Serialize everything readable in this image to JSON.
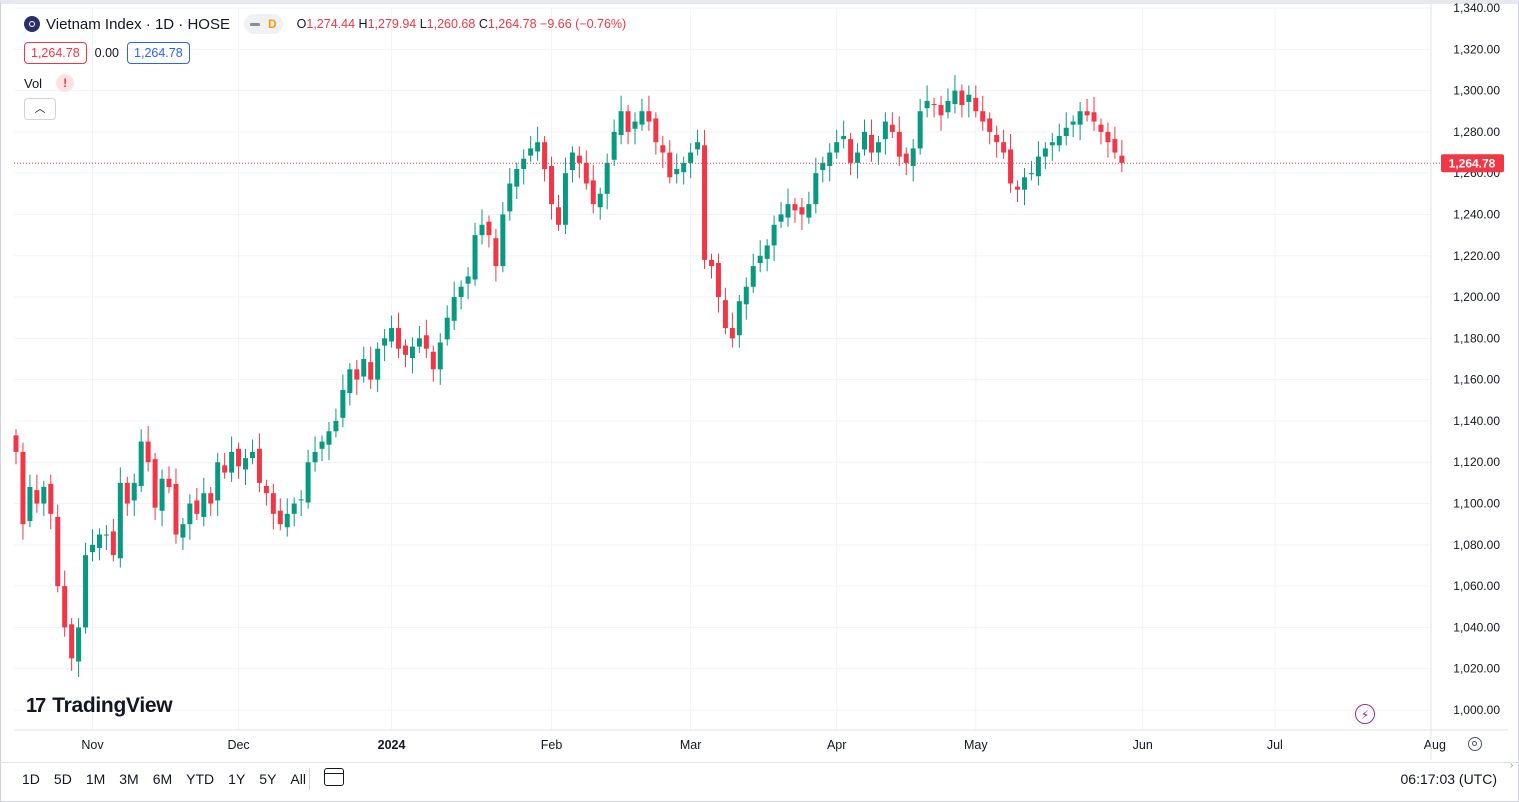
{
  "header": {
    "title": "Vietnam Index · 1D · HOSE",
    "interval_badge": "D",
    "ohlc": {
      "o_label": "O",
      "o": "1,274.44",
      "h_label": "H",
      "h": "1,279.94",
      "l_label": "L",
      "l": "1,260.68",
      "c_label": "C",
      "c": "1,264.78",
      "change": "−9.66 (−0.76%)"
    }
  },
  "price_boxes": {
    "left": "1,264.78",
    "middle": "0.00",
    "right": "1,264.78"
  },
  "volume": {
    "label": "Vol",
    "warning": "!"
  },
  "collapse_icon": "chevron-up-icon",
  "brand": "TradingView",
  "ranges": [
    "1D",
    "5D",
    "1M",
    "3M",
    "6M",
    "YTD",
    "1Y",
    "5Y",
    "All"
  ],
  "clock": "06:17:03 (UTC)",
  "colors": {
    "up": "#089981",
    "down": "#f23645",
    "grid": "#f0f3fa",
    "axis_text": "#131722",
    "last_price_bg": "#f23645"
  },
  "chart_data": {
    "type": "candlestick",
    "symbol": "Vietnam Index",
    "interval": "1D",
    "exchange": "HOSE",
    "ylim": [
      1000,
      1340
    ],
    "y_ticks": [
      1000,
      1020,
      1040,
      1060,
      1080,
      1100,
      1120,
      1140,
      1160,
      1180,
      1200,
      1220,
      1240,
      1260,
      1280,
      1300,
      1320,
      1340
    ],
    "y_tick_labels": [
      "1,000.00",
      "1,020.00",
      "1,040.00",
      "1,060.00",
      "1,080.00",
      "1,100.00",
      "1,120.00",
      "1,140.00",
      "1,160.00",
      "1,180.00",
      "1,200.00",
      "1,220.00",
      "1,240.00",
      "1,260.00",
      "1,280.00",
      "1,300.00",
      "1,320.00",
      "1,340.00"
    ],
    "x_ticks": [
      {
        "label": "Nov",
        "index": 11
      },
      {
        "label": "Dec",
        "index": 32
      },
      {
        "label": "2024",
        "index": 54
      },
      {
        "label": "Feb",
        "index": 77
      },
      {
        "label": "Mar",
        "index": 97
      },
      {
        "label": "Apr",
        "index": 118
      },
      {
        "label": "May",
        "index": 138
      },
      {
        "label": "Jun",
        "index": 162
      },
      {
        "label": "Jul",
        "index": 181
      },
      {
        "label": "Aug",
        "index": 204
      }
    ],
    "last_price": 1264.78,
    "last_price_label": "1,264.78",
    "closes": [
      1125,
      1090,
      1108,
      1100,
      1108,
      1095,
      1060,
      1040,
      1025,
      1040,
      1075,
      1080,
      1085,
      1085,
      1075,
      1110,
      1100,
      1110,
      1130,
      1120,
      1098,
      1112,
      1108,
      1085,
      1090,
      1100,
      1095,
      1105,
      1100,
      1120,
      1115,
      1125,
      1118,
      1122,
      1125,
      1110,
      1105,
      1095,
      1090,
      1095,
      1100,
      1102,
      1120,
      1125,
      1130,
      1135,
      1140,
      1155,
      1165,
      1160,
      1170,
      1160,
      1175,
      1180,
      1185,
      1175,
      1172,
      1176,
      1180,
      1175,
      1165,
      1178,
      1190,
      1200,
      1205,
      1210,
      1230,
      1235,
      1230,
      1215,
      1240,
      1255,
      1262,
      1267,
      1272,
      1275,
      1262,
      1245,
      1235,
      1260,
      1270,
      1265,
      1255,
      1245,
      1250,
      1265,
      1280,
      1290,
      1280,
      1285,
      1290,
      1285,
      1275,
      1270,
      1258,
      1262,
      1265,
      1270,
      1275,
      1218,
      1215,
      1200,
      1185,
      1180,
      1198,
      1205,
      1215,
      1220,
      1225,
      1235,
      1240,
      1245,
      1242,
      1240,
      1245,
      1260,
      1265,
      1270,
      1275,
      1278,
      1265,
      1270,
      1280,
      1270,
      1275,
      1285,
      1280,
      1268,
      1265,
      1272,
      1290,
      1295,
      1293,
      1288,
      1295,
      1300,
      1293,
      1298,
      1290,
      1285,
      1280,
      1275,
      1270,
      1255,
      1252,
      1258,
      1260,
      1268,
      1272,
      1275,
      1278,
      1282,
      1285,
      1290,
      1288,
      1285,
      1280,
      1275,
      1270,
      1265
    ],
    "series_note": "Candles approximated from visual reading of the price chart"
  }
}
